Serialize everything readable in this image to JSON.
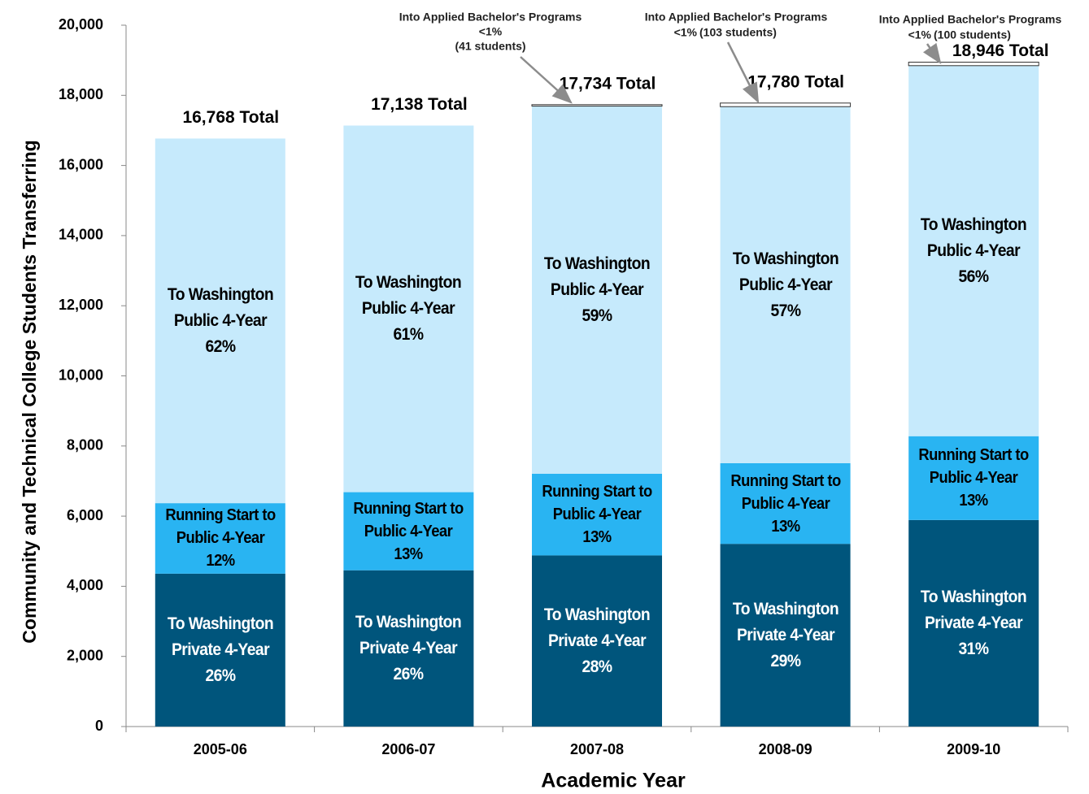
{
  "chart_data": {
    "type": "stacked_bar",
    "x_label": "Academic Year",
    "y_label": "Community and Technical College Students Transferring",
    "categories": [
      "2005-06",
      "2006-07",
      "2007-08",
      "2008-09",
      "2009-10"
    ],
    "ylim": [
      0,
      20000
    ],
    "yticks": [
      {
        "value": 0,
        "label": "0"
      },
      {
        "value": 2000,
        "label": "2,000"
      },
      {
        "value": 4000,
        "label": "4,000"
      },
      {
        "value": 6000,
        "label": "6,000"
      },
      {
        "value": 8000,
        "label": "8,000"
      },
      {
        "value": 10000,
        "label": "10,000"
      },
      {
        "value": 12000,
        "label": "12,000"
      },
      {
        "value": 14000,
        "label": "14,000"
      },
      {
        "value": 16000,
        "label": "16,000"
      },
      {
        "value": 18000,
        "label": "18,000"
      },
      {
        "value": 20000,
        "label": "20,000"
      }
    ],
    "series": [
      {
        "name": "To Washington Private 4-Year",
        "color": "#00557c",
        "text_color": "#ffffff",
        "values": [
          4360,
          4456,
          4880,
          5210,
          5890
        ],
        "percent_labels": [
          "26%",
          "26%",
          "28%",
          "29%",
          "31%"
        ]
      },
      {
        "name": "Running Start to Public 4-Year",
        "color": "#29b4f2",
        "text_color": "#000000",
        "values": [
          2010,
          2228,
          2330,
          2300,
          2390
        ],
        "percent_labels": [
          "12%",
          "13%",
          "13%",
          "13%",
          "13%"
        ]
      },
      {
        "name": "To Washington Public 4-Year",
        "color": "#c6eafc",
        "text_color": "#000000",
        "values": [
          10398,
          10454,
          10483,
          10167,
          10566
        ],
        "percent_labels": [
          "62%",
          "61%",
          "59%",
          "57%",
          "56%"
        ]
      },
      {
        "name": "Into Applied Bachelor's Programs",
        "color": "#ffffff",
        "values": [
          null,
          null,
          41,
          103,
          100
        ],
        "value_labels": [
          null,
          null,
          "(41 students)",
          "(103 students)",
          "(100 students)"
        ],
        "percent_labels": [
          null,
          null,
          "<1%",
          "<1%",
          "<1%"
        ]
      }
    ],
    "totals": [
      16768,
      17138,
      17734,
      17780,
      18946
    ],
    "total_labels": [
      "16,768 Total",
      "17,138 Total",
      "17,734 Total",
      "17,780 Total",
      "18,946 Total"
    ]
  }
}
